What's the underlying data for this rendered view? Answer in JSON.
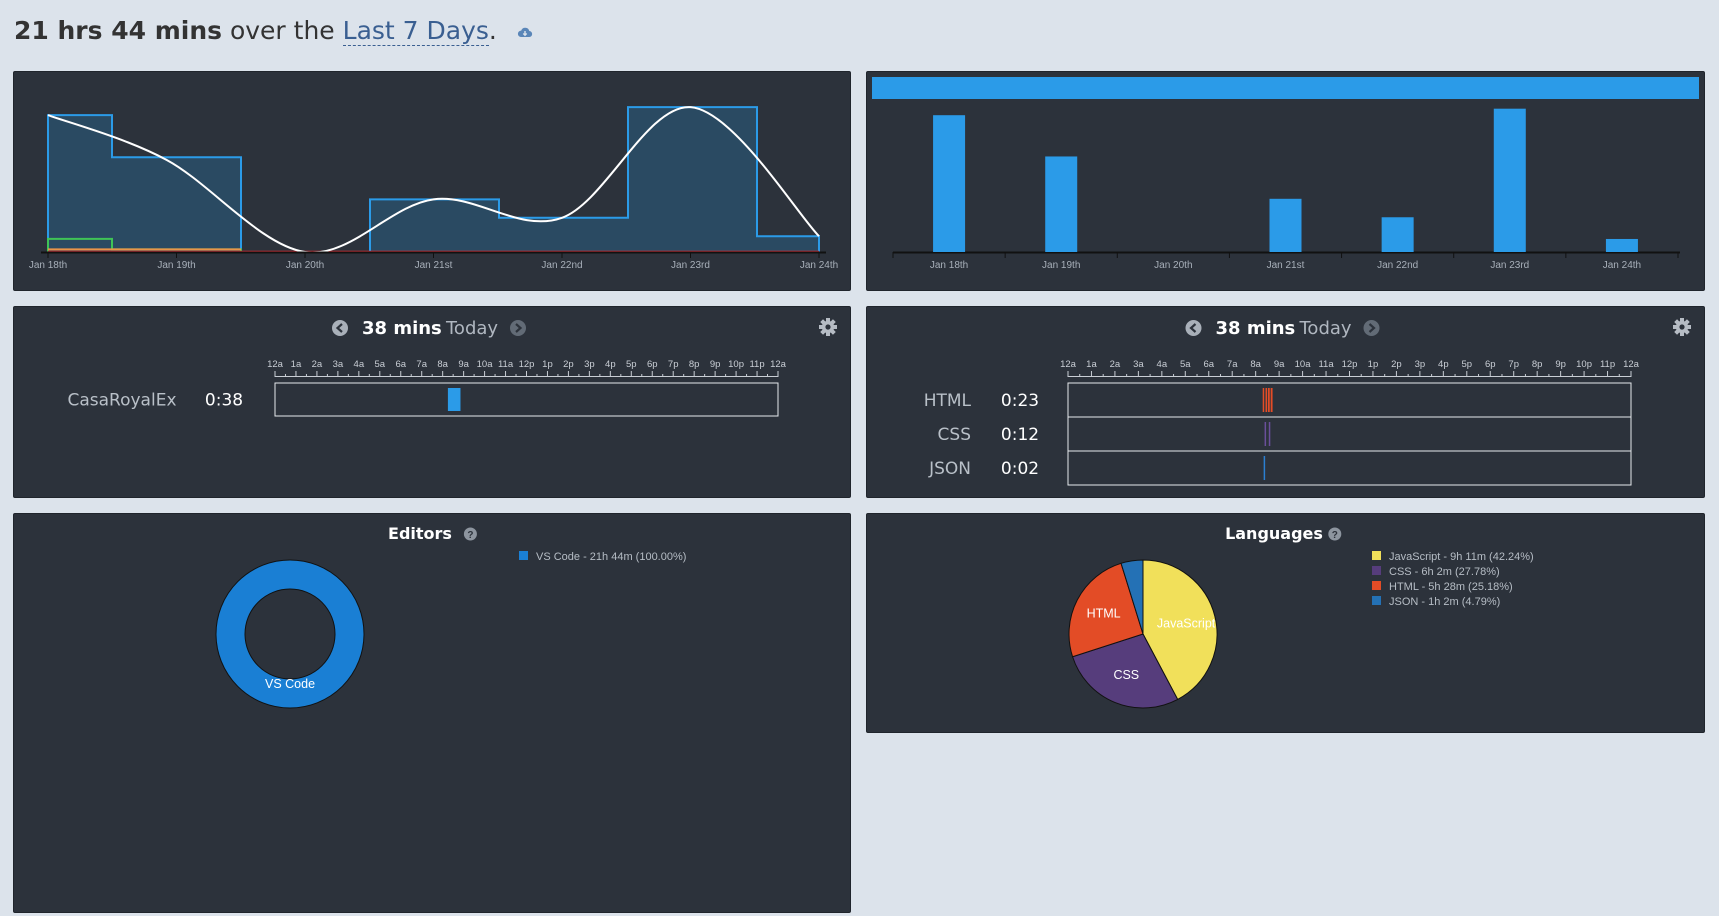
{
  "header": {
    "total": "21 hrs 44 mins",
    "over_the": "over the",
    "range_label": "Last 7 Days",
    "period": "."
  },
  "colors": {
    "panel_bg": "#2c323b",
    "accent_blue": "#2b9be8",
    "html": "#e34c26",
    "css": "#563d7c",
    "javascript": "#f1e05a",
    "json": "#2471b5",
    "vscode": "#1a7fd4",
    "page_bg": "#dce3eb"
  },
  "chart_data": [
    {
      "type": "area",
      "title": "",
      "categories": [
        "Jan 18th",
        "Jan 19th",
        "Jan 20th",
        "Jan 21st",
        "Jan 22nd",
        "Jan 23rd",
        "Jan 24th"
      ],
      "series": [
        {
          "values": [
            2.6,
            1.8,
            0.0,
            1.0,
            0.65,
            2.75,
            0.3
          ]
        },
        {
          "values": [
            0.25,
            0.05,
            0.0,
            0.0,
            0.0,
            0.0,
            0.0
          ]
        },
        {
          "values": [
            0.05,
            0.05,
            0.0,
            0.0,
            0.0,
            0.0,
            0.0
          ]
        }
      ],
      "ylim": [
        0,
        3
      ]
    },
    {
      "type": "bar",
      "title": "",
      "categories": [
        "Jan 18th",
        "Jan 19th",
        "Jan 20th",
        "Jan 21st",
        "Jan 22nd",
        "Jan 23rd",
        "Jan 24th"
      ],
      "values": [
        6.3,
        4.4,
        0,
        2.45,
        1.6,
        6.6,
        0.6
      ],
      "ylim": [
        0,
        7
      ]
    },
    {
      "type": "pie",
      "title": "Editors",
      "labels": [
        "VS Code"
      ],
      "values": [
        100.0
      ],
      "legend": [
        "VS Code - 21h 44m (100.00%)"
      ]
    },
    {
      "type": "pie",
      "title": "Languages",
      "labels": [
        "JavaScript",
        "CSS",
        "HTML",
        "JSON"
      ],
      "values": [
        42.24,
        27.78,
        25.18,
        4.79
      ],
      "legend": [
        "JavaScript - 9h 11m (42.24%)",
        "CSS - 6h 2m (27.78%)",
        "HTML - 5h 28m (25.18%)",
        "JSON - 1h 2m (4.79%)"
      ]
    }
  ],
  "timeline_hours": [
    "12a",
    "1a",
    "2a",
    "3a",
    "4a",
    "5a",
    "6a",
    "7a",
    "8a",
    "9a",
    "10a",
    "11a",
    "12p",
    "1p",
    "2p",
    "3p",
    "4p",
    "5p",
    "6p",
    "7p",
    "8p",
    "9p",
    "10p",
    "11p",
    "12a"
  ],
  "projects_timeline": {
    "total": "38 mins",
    "day": "Today",
    "rows": [
      {
        "name": "CasaRoyalEx",
        "time": "0:38",
        "color": "#2b9be8",
        "spans": [
          [
            8.25,
            8.85
          ]
        ]
      }
    ]
  },
  "languages_timeline": {
    "total": "38 mins",
    "day": "Today",
    "rows": [
      {
        "name": "HTML",
        "time": "0:23",
        "color": "#e34c26",
        "spans": [
          [
            8.3,
            8.36
          ],
          [
            8.42,
            8.47
          ],
          [
            8.52,
            8.6
          ],
          [
            8.64,
            8.72
          ]
        ]
      },
      {
        "name": "CSS",
        "time": "0:12",
        "color": "#6a4f9a",
        "spans": [
          [
            8.38,
            8.43
          ],
          [
            8.56,
            8.62
          ]
        ]
      },
      {
        "name": "JSON",
        "time": "0:02",
        "color": "#2b7fd1",
        "spans": [
          [
            8.34,
            8.37
          ]
        ]
      }
    ]
  }
}
